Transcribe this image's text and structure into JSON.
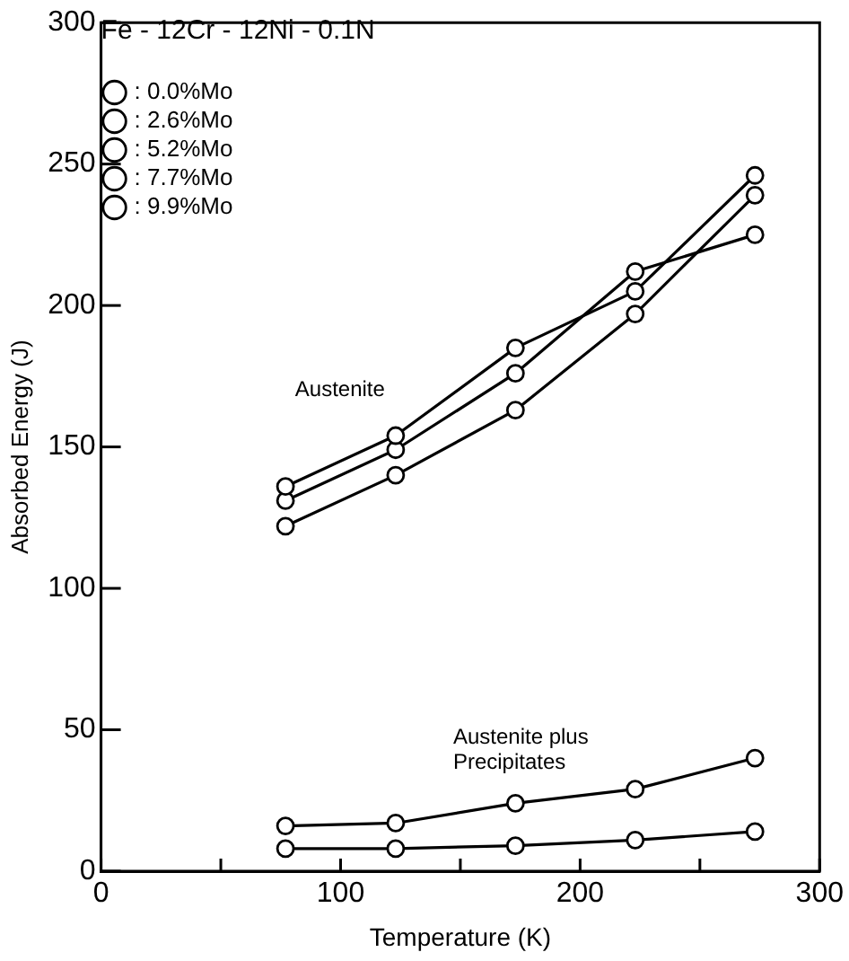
{
  "chart_data": {
    "type": "line",
    "title": "Fe - 12Cr - 12Ni - 0.1N",
    "xlabel": "Temperature (K)",
    "ylabel": "Absorbed Energy (J)",
    "x": [
      77,
      123,
      173,
      223,
      273
    ],
    "series": [
      {
        "name": ": 0.0%Mo",
        "color": "#000000",
        "values": [
          122,
          140,
          163,
          197,
          239
        ]
      },
      {
        "name": ": 2.6%Mo",
        "color": "#000000",
        "values": [
          136,
          154,
          185,
          205,
          246
        ]
      },
      {
        "name": ": 5.2%Mo",
        "color": "#000000",
        "values": [
          131,
          149,
          176,
          212,
          225
        ]
      },
      {
        "name": ": 7.7%Mo",
        "color": "#000000",
        "values": [
          16,
          17,
          24,
          29,
          40
        ]
      },
      {
        "name": ": 9.9%Mo",
        "color": "#000000",
        "values": [
          8,
          8,
          9,
          11,
          14
        ]
      }
    ],
    "xlim": [
      0,
      300
    ],
    "xticks": [
      0,
      {
        "value": 50,
        "label": null
      },
      100,
      {
        "value": 150,
        "label": null
      },
      200,
      {
        "value": 250,
        "label": null
      },
      300
    ],
    "ylim": [
      0,
      300
    ],
    "yticks": [
      0,
      50,
      100,
      150,
      200,
      250,
      300
    ],
    "annotations": [
      "Austenite",
      "Austenite plus\nPrecipitates"
    ],
    "legend": "top left",
    "marker": "circle",
    "line_style": "solid"
  }
}
